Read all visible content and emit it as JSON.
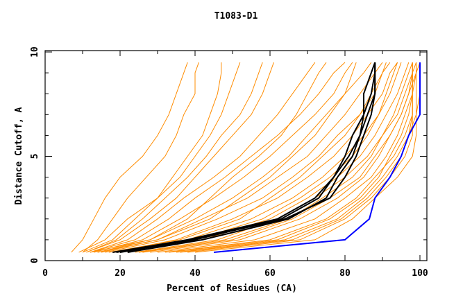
{
  "chart_data": {
    "type": "line",
    "title": "T1083-D1",
    "xlabel": "Percent of Residues (CA)",
    "ylabel": "Distance Cutoff, A",
    "xlim": [
      0,
      100
    ],
    "ylim": [
      0,
      10
    ],
    "x_ticks": [
      "0",
      "20",
      "40",
      "60",
      "80",
      "100"
    ],
    "y_ticks": [
      "0",
      "5",
      "10"
    ],
    "grid": false,
    "y_levels": [
      0.4,
      1,
      2,
      3,
      4,
      5,
      6,
      7,
      8,
      9,
      9.5
    ],
    "colors": {
      "models": "#ff8c00",
      "highlight": "#000000",
      "best": "#0000ff"
    },
    "series_models": [
      [
        7,
        10,
        13,
        16,
        20,
        26,
        30,
        33,
        35,
        37,
        38
      ],
      [
        10,
        14,
        18,
        22,
        27,
        32,
        35,
        37,
        40,
        40,
        41
      ],
      [
        10,
        18,
        24,
        30,
        36,
        40,
        44,
        47,
        49,
        51,
        52
      ],
      [
        11,
        20,
        28,
        35,
        40,
        45,
        50,
        55,
        58,
        60,
        61
      ],
      [
        12,
        22,
        30,
        37,
        45,
        52,
        57,
        62,
        66,
        70,
        72
      ],
      [
        12,
        24,
        33,
        40,
        48,
        55,
        62,
        68,
        73,
        77,
        80
      ],
      [
        13,
        26,
        36,
        45,
        53,
        60,
        66,
        72,
        77,
        80,
        82
      ],
      [
        14,
        28,
        40,
        50,
        58,
        65,
        70,
        75,
        80,
        85,
        87
      ],
      [
        15,
        30,
        42,
        54,
        62,
        70,
        75,
        80,
        84,
        88,
        90
      ],
      [
        16,
        32,
        46,
        58,
        66,
        73,
        78,
        84,
        88,
        90,
        92
      ],
      [
        18,
        35,
        50,
        62,
        70,
        77,
        82,
        86,
        90,
        92,
        94
      ],
      [
        20,
        38,
        55,
        66,
        74,
        80,
        85,
        89,
        92,
        94,
        95
      ],
      [
        22,
        42,
        60,
        70,
        78,
        84,
        88,
        91,
        94,
        96,
        97
      ],
      [
        25,
        48,
        65,
        74,
        82,
        87,
        90,
        93,
        95,
        97,
        98
      ],
      [
        28,
        52,
        68,
        78,
        85,
        89,
        92,
        95,
        97,
        98,
        98
      ],
      [
        30,
        56,
        72,
        80,
        87,
        91,
        94,
        96,
        98,
        98,
        98
      ],
      [
        32,
        60,
        75,
        83,
        88,
        93,
        96,
        98,
        98,
        98,
        98
      ],
      [
        35,
        64,
        78,
        85,
        90,
        94,
        97,
        98,
        98,
        98,
        98
      ],
      [
        38,
        68,
        80,
        87,
        92,
        96,
        98,
        98,
        98,
        98,
        98
      ],
      [
        40,
        72,
        82,
        88,
        94,
        98,
        99,
        99,
        99,
        99,
        99
      ],
      [
        12,
        28,
        38,
        44,
        50,
        57,
        63,
        67,
        70,
        73,
        75
      ],
      [
        14,
        30,
        44,
        52,
        60,
        66,
        72,
        76,
        80,
        82,
        83
      ],
      [
        17,
        36,
        52,
        60,
        68,
        74,
        80,
        84,
        87,
        90,
        91
      ],
      [
        9,
        16,
        22,
        30,
        34,
        38,
        42,
        44,
        46,
        47,
        47
      ],
      [
        11,
        19,
        26,
        32,
        38,
        43,
        47,
        52,
        55,
        57,
        58
      ],
      [
        24,
        46,
        62,
        72,
        80,
        86,
        90,
        94,
        96,
        98,
        99
      ],
      [
        26,
        50,
        66,
        76,
        84,
        88,
        92,
        95,
        97,
        99,
        99
      ],
      [
        20,
        40,
        58,
        68,
        76,
        82,
        86,
        89,
        91,
        93,
        94
      ],
      [
        33,
        62,
        76,
        84,
        89,
        92,
        95,
        97,
        98,
        99,
        100
      ],
      [
        36,
        66,
        79,
        86,
        91,
        95,
        97,
        99,
        100,
        100,
        100
      ]
    ],
    "series_highlight": [
      [
        18,
        38,
        62,
        72,
        77,
        80,
        82,
        85,
        87,
        88,
        88
      ],
      [
        22,
        42,
        65,
        75,
        78,
        82,
        84,
        86,
        88,
        88,
        88
      ],
      [
        20,
        40,
        63,
        73,
        77,
        81,
        84,
        85,
        85,
        87,
        88
      ],
      [
        19,
        39,
        64,
        76,
        80,
        83,
        85,
        87,
        88,
        88,
        88
      ]
    ],
    "series_best": [
      45,
      80,
      86.5,
      88,
      92,
      95,
      97,
      100,
      100,
      100,
      100
    ]
  }
}
